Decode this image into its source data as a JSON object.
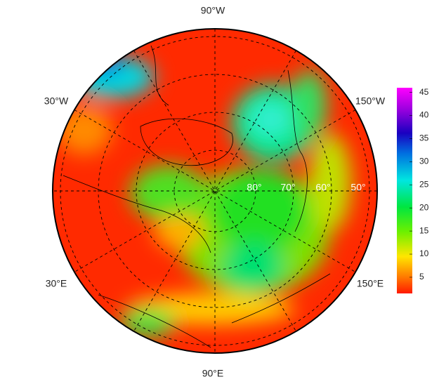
{
  "map": {
    "longitude_labels": [
      "90°W",
      "30°W",
      "150°W",
      "30°E",
      "150°E",
      "90°E"
    ],
    "latitude_labels": [
      "80°",
      "70°",
      "60°",
      "50°"
    ],
    "colorbar": {
      "range": [
        1.5,
        46
      ],
      "ticks": [
        5,
        10,
        15,
        20,
        25,
        30,
        35,
        40,
        45
      ]
    }
  }
}
